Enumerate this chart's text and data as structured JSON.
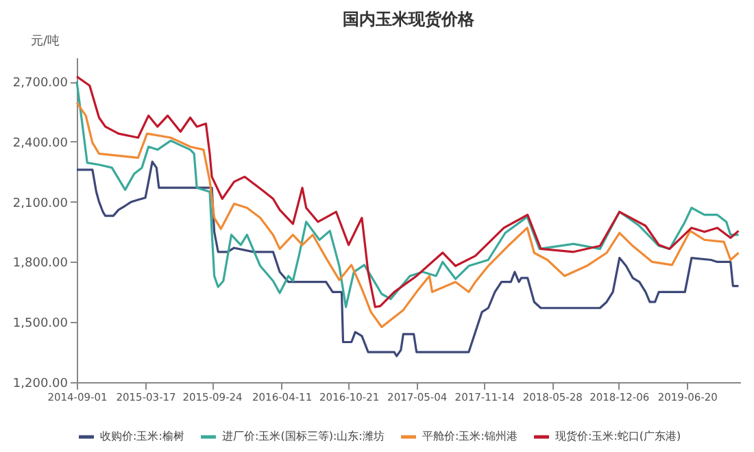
{
  "chart_data": {
    "type": "line",
    "title": "国内玉米现货价格",
    "ylabel": "元/吨",
    "xlim": [
      "2014-09-01",
      "2019-11-20"
    ],
    "xticks": [
      "2014-09-01",
      "2015-03-17",
      "2015-09-24",
      "2016-04-11",
      "2016-10-21",
      "2017-05-04",
      "2017-11-14",
      "2018-05-28",
      "2018-12-06",
      "2019-06-20"
    ],
    "ylim": [
      1200,
      2820
    ],
    "yticks": [
      {
        "value": 1200,
        "label": "1,200.00"
      },
      {
        "value": 1500,
        "label": "1,500.00"
      },
      {
        "value": 1800,
        "label": "1,800.00"
      },
      {
        "value": 2100,
        "label": "2,100.00"
      },
      {
        "value": 2400,
        "label": "2,400.00"
      },
      {
        "value": 2700,
        "label": "2,700.00"
      }
    ],
    "grid": false,
    "legend": "bottom",
    "marker": "none",
    "line_style": "solid",
    "series": [
      {
        "name": "收购价:玉米:榆树",
        "color": "#3d4878",
        "x": [
          "2014-09-01",
          "2014-10-16",
          "2014-10-27",
          "2014-11-04",
          "2014-11-15",
          "2014-11-22",
          "2014-12-15",
          "2014-12-30",
          "2015-01-18",
          "2015-02-05",
          "2015-02-24",
          "2015-03-17",
          "2015-03-26",
          "2015-04-06",
          "2015-04-18",
          "2015-04-25",
          "2015-09-24",
          "2015-10-01",
          "2015-10-12",
          "2015-11-08",
          "2015-11-27",
          "2016-01-22",
          "2016-03-18",
          "2016-04-06",
          "2016-05-01",
          "2016-08-17",
          "2016-09-05",
          "2016-10-01",
          "2016-10-05",
          "2016-10-29",
          "2016-11-09",
          "2016-11-28",
          "2016-12-16",
          "2017-03-01",
          "2017-03-08",
          "2017-03-20",
          "2017-03-27",
          "2017-04-26",
          "2017-05-04",
          "2017-10-01",
          "2017-10-20",
          "2017-11-08",
          "2017-11-26",
          "2017-12-15",
          "2018-01-03",
          "2018-01-30",
          "2018-02-10",
          "2018-02-22",
          "2018-03-01",
          "2018-03-19",
          "2018-04-07",
          "2018-04-26",
          "2018-10-13",
          "2018-11-01",
          "2018-11-19",
          "2018-12-08",
          "2018-12-27",
          "2019-01-15",
          "2019-02-03",
          "2019-02-21",
          "2019-03-05",
          "2019-03-20",
          "2019-03-31",
          "2019-06-14",
          "2019-07-03",
          "2019-08-28",
          "2019-09-15",
          "2019-10-23",
          "2019-10-30",
          "2019-11-15"
        ],
        "values": [
          2260,
          2260,
          2150,
          2100,
          2050,
          2030,
          2030,
          2060,
          2080,
          2100,
          2110,
          2120,
          2200,
          2300,
          2270,
          2170,
          2170,
          1950,
          1850,
          1850,
          1870,
          1850,
          1850,
          1750,
          1700,
          1700,
          1650,
          1650,
          1400,
          1400,
          1450,
          1430,
          1350,
          1350,
          1330,
          1360,
          1440,
          1440,
          1350,
          1350,
          1450,
          1550,
          1570,
          1650,
          1700,
          1700,
          1750,
          1700,
          1720,
          1720,
          1600,
          1570,
          1570,
          1600,
          1650,
          1820,
          1780,
          1720,
          1700,
          1650,
          1600,
          1600,
          1650,
          1650,
          1820,
          1810,
          1800,
          1800,
          1680,
          1680
        ]
      },
      {
        "name": "进厂价:玉米(国标三等):山东:潍坊",
        "color": "#3aa99b",
        "x": [
          "2014-09-01",
          "2014-09-16",
          "2014-10-01",
          "2014-11-04",
          "2014-12-11",
          "2015-01-18",
          "2015-02-13",
          "2015-03-07",
          "2015-03-26",
          "2015-04-21",
          "2015-05-29",
          "2015-07-24",
          "2015-08-04",
          "2015-08-12",
          "2015-09-18",
          "2015-09-24",
          "2015-10-01",
          "2015-10-12",
          "2015-10-27",
          "2015-11-19",
          "2015-12-16",
          "2016-01-03",
          "2016-02-10",
          "2016-03-18",
          "2016-04-06",
          "2016-05-01",
          "2016-05-14",
          "2016-06-02",
          "2016-06-21",
          "2016-07-29",
          "2016-08-28",
          "2016-09-24",
          "2016-10-13",
          "2016-11-05",
          "2016-12-05",
          "2016-12-24",
          "2017-01-24",
          "2017-02-19",
          "2017-04-15",
          "2017-05-22",
          "2017-06-29",
          "2017-07-18",
          "2017-08-24",
          "2017-10-01",
          "2017-11-26",
          "2018-01-14",
          "2018-03-18",
          "2018-04-22",
          "2018-07-29",
          "2018-10-13",
          "2018-12-08",
          "2019-02-03",
          "2019-03-31",
          "2019-05-01",
          "2019-06-14",
          "2019-07-03",
          "2019-08-09",
          "2019-09-15",
          "2019-10-11",
          "2019-10-23",
          "2019-11-15"
        ],
        "values": [
          2700,
          2500,
          2295,
          2285,
          2270,
          2160,
          2240,
          2270,
          2375,
          2360,
          2405,
          2360,
          2340,
          2170,
          2150,
          1950,
          1730,
          1675,
          1705,
          1935,
          1885,
          1935,
          1780,
          1705,
          1645,
          1730,
          1705,
          1845,
          2000,
          1910,
          1955,
          1780,
          1575,
          1750,
          1785,
          1730,
          1640,
          1615,
          1730,
          1750,
          1730,
          1800,
          1715,
          1780,
          1810,
          1945,
          2025,
          1865,
          1890,
          1865,
          2050,
          1980,
          1880,
          1865,
          2000,
          2070,
          2035,
          2035,
          2000,
          1935,
          1935
        ]
      },
      {
        "name": "平舱价:玉米:锦州港",
        "color": "#f08a35",
        "x": [
          "2014-09-01",
          "2014-09-27",
          "2014-10-16",
          "2014-11-04",
          "2014-12-30",
          "2015-02-24",
          "2015-03-22",
          "2015-05-29",
          "2015-07-24",
          "2015-08-31",
          "2015-09-18",
          "2015-10-01",
          "2015-10-20",
          "2015-11-27",
          "2016-01-03",
          "2016-02-10",
          "2016-03-18",
          "2016-04-06",
          "2016-05-14",
          "2016-06-10",
          "2016-07-10",
          "2016-08-17",
          "2016-09-24",
          "2016-10-29",
          "2016-11-28",
          "2016-12-24",
          "2017-01-24",
          "2017-03-27",
          "2017-05-04",
          "2017-06-10",
          "2017-06-18",
          "2017-08-24",
          "2017-10-01",
          "2017-10-20",
          "2017-11-26",
          "2018-01-22",
          "2018-03-18",
          "2018-04-07",
          "2018-05-15",
          "2018-07-03",
          "2018-09-05",
          "2018-11-01",
          "2018-12-08",
          "2019-01-15",
          "2019-03-12",
          "2019-05-08",
          "2019-06-29",
          "2019-08-09",
          "2019-10-04",
          "2019-10-23",
          "2019-11-15"
        ],
        "values": [
          2595,
          2530,
          2395,
          2340,
          2330,
          2320,
          2440,
          2420,
          2375,
          2360,
          2205,
          2020,
          1965,
          2090,
          2070,
          2020,
          1935,
          1865,
          1935,
          1885,
          1935,
          1820,
          1710,
          1785,
          1665,
          1550,
          1475,
          1560,
          1650,
          1730,
          1650,
          1700,
          1650,
          1700,
          1780,
          1880,
          1970,
          1845,
          1810,
          1730,
          1780,
          1845,
          1945,
          1880,
          1800,
          1785,
          1955,
          1910,
          1900,
          1810,
          1845
        ]
      },
      {
        "name": "现货价:玉米:蛇口(广东港)",
        "color": "#c0182b",
        "x": [
          "2014-09-01",
          "2014-10-08",
          "2014-11-04",
          "2014-11-22",
          "2014-12-30",
          "2015-02-24",
          "2015-03-26",
          "2015-04-21",
          "2015-05-20",
          "2015-06-26",
          "2015-07-24",
          "2015-08-12",
          "2015-09-07",
          "2015-09-18",
          "2015-09-24",
          "2015-10-24",
          "2015-11-27",
          "2015-12-27",
          "2016-02-18",
          "2016-03-18",
          "2016-04-06",
          "2016-05-14",
          "2016-06-10",
          "2016-06-21",
          "2016-07-25",
          "2016-09-15",
          "2016-10-21",
          "2016-11-28",
          "2016-12-16",
          "2017-01-05",
          "2017-01-20",
          "2017-03-01",
          "2017-05-04",
          "2017-07-18",
          "2017-08-24",
          "2017-10-20",
          "2018-01-10",
          "2018-03-19",
          "2018-04-26",
          "2018-07-29",
          "2018-10-13",
          "2018-12-08",
          "2019-02-21",
          "2019-03-31",
          "2019-05-01",
          "2019-07-03",
          "2019-08-09",
          "2019-09-15",
          "2019-10-23",
          "2019-11-15"
        ],
        "values": [
          2725,
          2680,
          2520,
          2475,
          2440,
          2420,
          2530,
          2475,
          2530,
          2450,
          2520,
          2475,
          2490,
          2340,
          2225,
          2115,
          2200,
          2225,
          2155,
          2115,
          2060,
          1990,
          2170,
          2070,
          2000,
          2050,
          1885,
          2020,
          1750,
          1575,
          1580,
          1650,
          1730,
          1846,
          1780,
          1830,
          1970,
          2035,
          1865,
          1850,
          1880,
          2050,
          1980,
          1885,
          1865,
          1970,
          1950,
          1970,
          1920,
          1955
        ]
      }
    ]
  }
}
